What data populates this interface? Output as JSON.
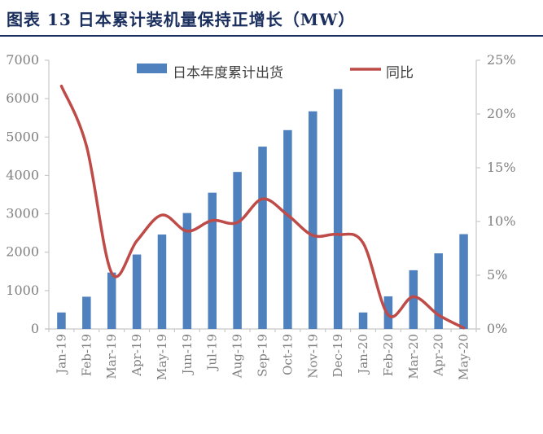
{
  "title": "图表 13 日本累计装机量保持正增长（MW）",
  "colors": {
    "bar": "#4e81bd",
    "line": "#be4b48",
    "title_navy": "#1b2f5e",
    "axis_line": "#c8c8c8",
    "axis_text": "#7f7f7f",
    "legend_text": "#3f3f3f"
  },
  "chart_data": {
    "type": "bar",
    "subtype": "bar+line combo, dual axis",
    "title": "",
    "categories": [
      "Jan-19",
      "Feb-19",
      "Mar-19",
      "Apr-19",
      "May-19",
      "Jun-19",
      "Jul-19",
      "Aug-19",
      "Sep-19",
      "Oct-19",
      "Nov-19",
      "Dec-19",
      "Jan-20",
      "Feb-20",
      "Mar-20",
      "Apr-20",
      "May-20"
    ],
    "series": [
      {
        "name": "日本年度累计出货",
        "type": "bar",
        "axis": "left",
        "unit": "MW",
        "values": [
          430,
          840,
          1470,
          1940,
          2460,
          3020,
          3550,
          4090,
          4750,
          5180,
          5670,
          6250,
          430,
          850,
          1530,
          1970,
          2470
        ]
      },
      {
        "name": "同比",
        "type": "line",
        "axis": "right",
        "unit": "%",
        "values": [
          22.6,
          17.0,
          5.2,
          8.2,
          10.6,
          9.1,
          10.1,
          9.9,
          12.1,
          10.6,
          8.7,
          8.8,
          8.0,
          1.3,
          3.0,
          1.3,
          0.1
        ]
      }
    ],
    "left_axis": {
      "min": 0,
      "max": 7000,
      "step": 1000,
      "tick_labels": [
        "0",
        "1000",
        "2000",
        "3000",
        "4000",
        "5000",
        "6000",
        "7000"
      ]
    },
    "right_axis": {
      "min": 0,
      "max": 25,
      "step": 5,
      "tick_labels": [
        "0%",
        "5%",
        "10%",
        "15%",
        "20%",
        "25%"
      ]
    },
    "xlabel": "",
    "ylabel": "",
    "grid": false,
    "legend_position": "top"
  }
}
